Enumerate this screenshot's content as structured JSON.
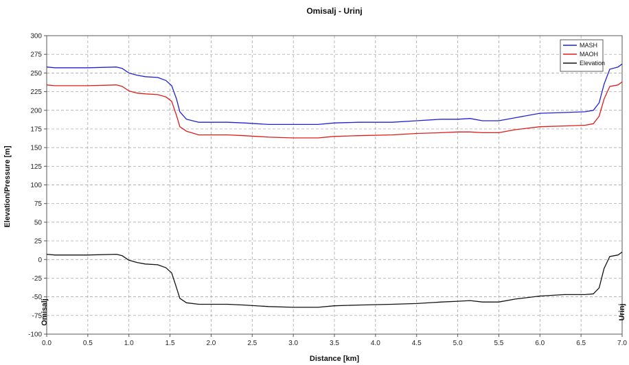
{
  "chart_data": {
    "type": "line",
    "title": "Omisalj - Urinj",
    "xlabel": "Distance [km]",
    "ylabel": "Elevation/Pressure [m]",
    "xlim": [
      0,
      7
    ],
    "ylim": [
      -100,
      300
    ],
    "xticks": [
      "0.0",
      "0.5",
      "1.0",
      "1.5",
      "2.0",
      "2.5",
      "3.0",
      "3.5",
      "4.0",
      "4.5",
      "5.0",
      "5.5",
      "6.0",
      "6.5",
      "7.0"
    ],
    "yticks": [
      "300",
      "275",
      "250",
      "225",
      "200",
      "175",
      "150",
      "125",
      "100",
      "75",
      "50",
      "25",
      "0",
      "-25",
      "-50",
      "-75",
      "-100"
    ],
    "grid": true,
    "legend_position": "top-right",
    "start_label": "Omisalj",
    "end_label": "Urinj",
    "series": [
      {
        "name": "MASH",
        "color": "#1f1fd8",
        "x": [
          0,
          0.1,
          0.5,
          0.85,
          0.92,
          1.0,
          1.1,
          1.2,
          1.35,
          1.45,
          1.52,
          1.58,
          1.62,
          1.7,
          1.85,
          2.0,
          2.2,
          2.4,
          2.7,
          3.0,
          3.3,
          3.5,
          3.8,
          4.2,
          4.5,
          4.8,
          5.0,
          5.15,
          5.3,
          5.5,
          5.7,
          6.0,
          6.3,
          6.55,
          6.65,
          6.72,
          6.78,
          6.85,
          6.95,
          7.0
        ],
        "y": [
          258,
          257,
          257,
          258,
          256,
          250,
          247,
          245,
          244,
          240,
          233,
          215,
          198,
          188,
          184,
          184,
          184,
          183,
          181,
          181,
          181,
          183,
          184,
          184,
          186,
          188,
          188,
          189,
          186,
          186,
          190,
          196,
          197,
          198,
          200,
          210,
          235,
          255,
          258,
          262
        ]
      },
      {
        "name": "MAOH",
        "color": "#e01a1a",
        "x": [
          0,
          0.1,
          0.5,
          0.85,
          0.92,
          1.0,
          1.1,
          1.2,
          1.35,
          1.45,
          1.52,
          1.58,
          1.62,
          1.7,
          1.85,
          2.0,
          2.2,
          2.4,
          2.7,
          3.0,
          3.3,
          3.5,
          3.8,
          4.2,
          4.5,
          4.8,
          5.0,
          5.15,
          5.3,
          5.5,
          5.7,
          6.0,
          6.3,
          6.55,
          6.65,
          6.72,
          6.78,
          6.85,
          6.95,
          7.0
        ],
        "y": [
          234,
          233,
          233,
          234,
          232,
          226,
          223,
          222,
          221,
          218,
          212,
          193,
          178,
          172,
          167,
          167,
          167,
          166,
          164,
          163,
          163,
          165,
          166,
          167,
          169,
          170,
          171,
          171,
          170,
          170,
          174,
          178,
          179,
          180,
          182,
          192,
          215,
          232,
          234,
          238
        ]
      },
      {
        "name": "Elevation",
        "color": "#111111",
        "x": [
          0,
          0.1,
          0.5,
          0.85,
          0.92,
          1.0,
          1.1,
          1.2,
          1.35,
          1.45,
          1.52,
          1.58,
          1.62,
          1.7,
          1.85,
          2.0,
          2.2,
          2.4,
          2.7,
          3.0,
          3.3,
          3.5,
          3.8,
          4.2,
          4.5,
          4.8,
          5.0,
          5.15,
          5.3,
          5.5,
          5.7,
          6.0,
          6.3,
          6.55,
          6.65,
          6.72,
          6.78,
          6.85,
          6.95,
          7.0
        ],
        "y": [
          7,
          6,
          6,
          7,
          5,
          -1,
          -4,
          -6,
          -7,
          -11,
          -18,
          -38,
          -52,
          -58,
          -60,
          -60,
          -60,
          -61,
          -63,
          -64,
          -64,
          -62,
          -61,
          -60,
          -59,
          -57,
          -56,
          -55,
          -57,
          -57,
          -53,
          -49,
          -47,
          -47,
          -46,
          -38,
          -12,
          4,
          6,
          10
        ]
      }
    ]
  }
}
